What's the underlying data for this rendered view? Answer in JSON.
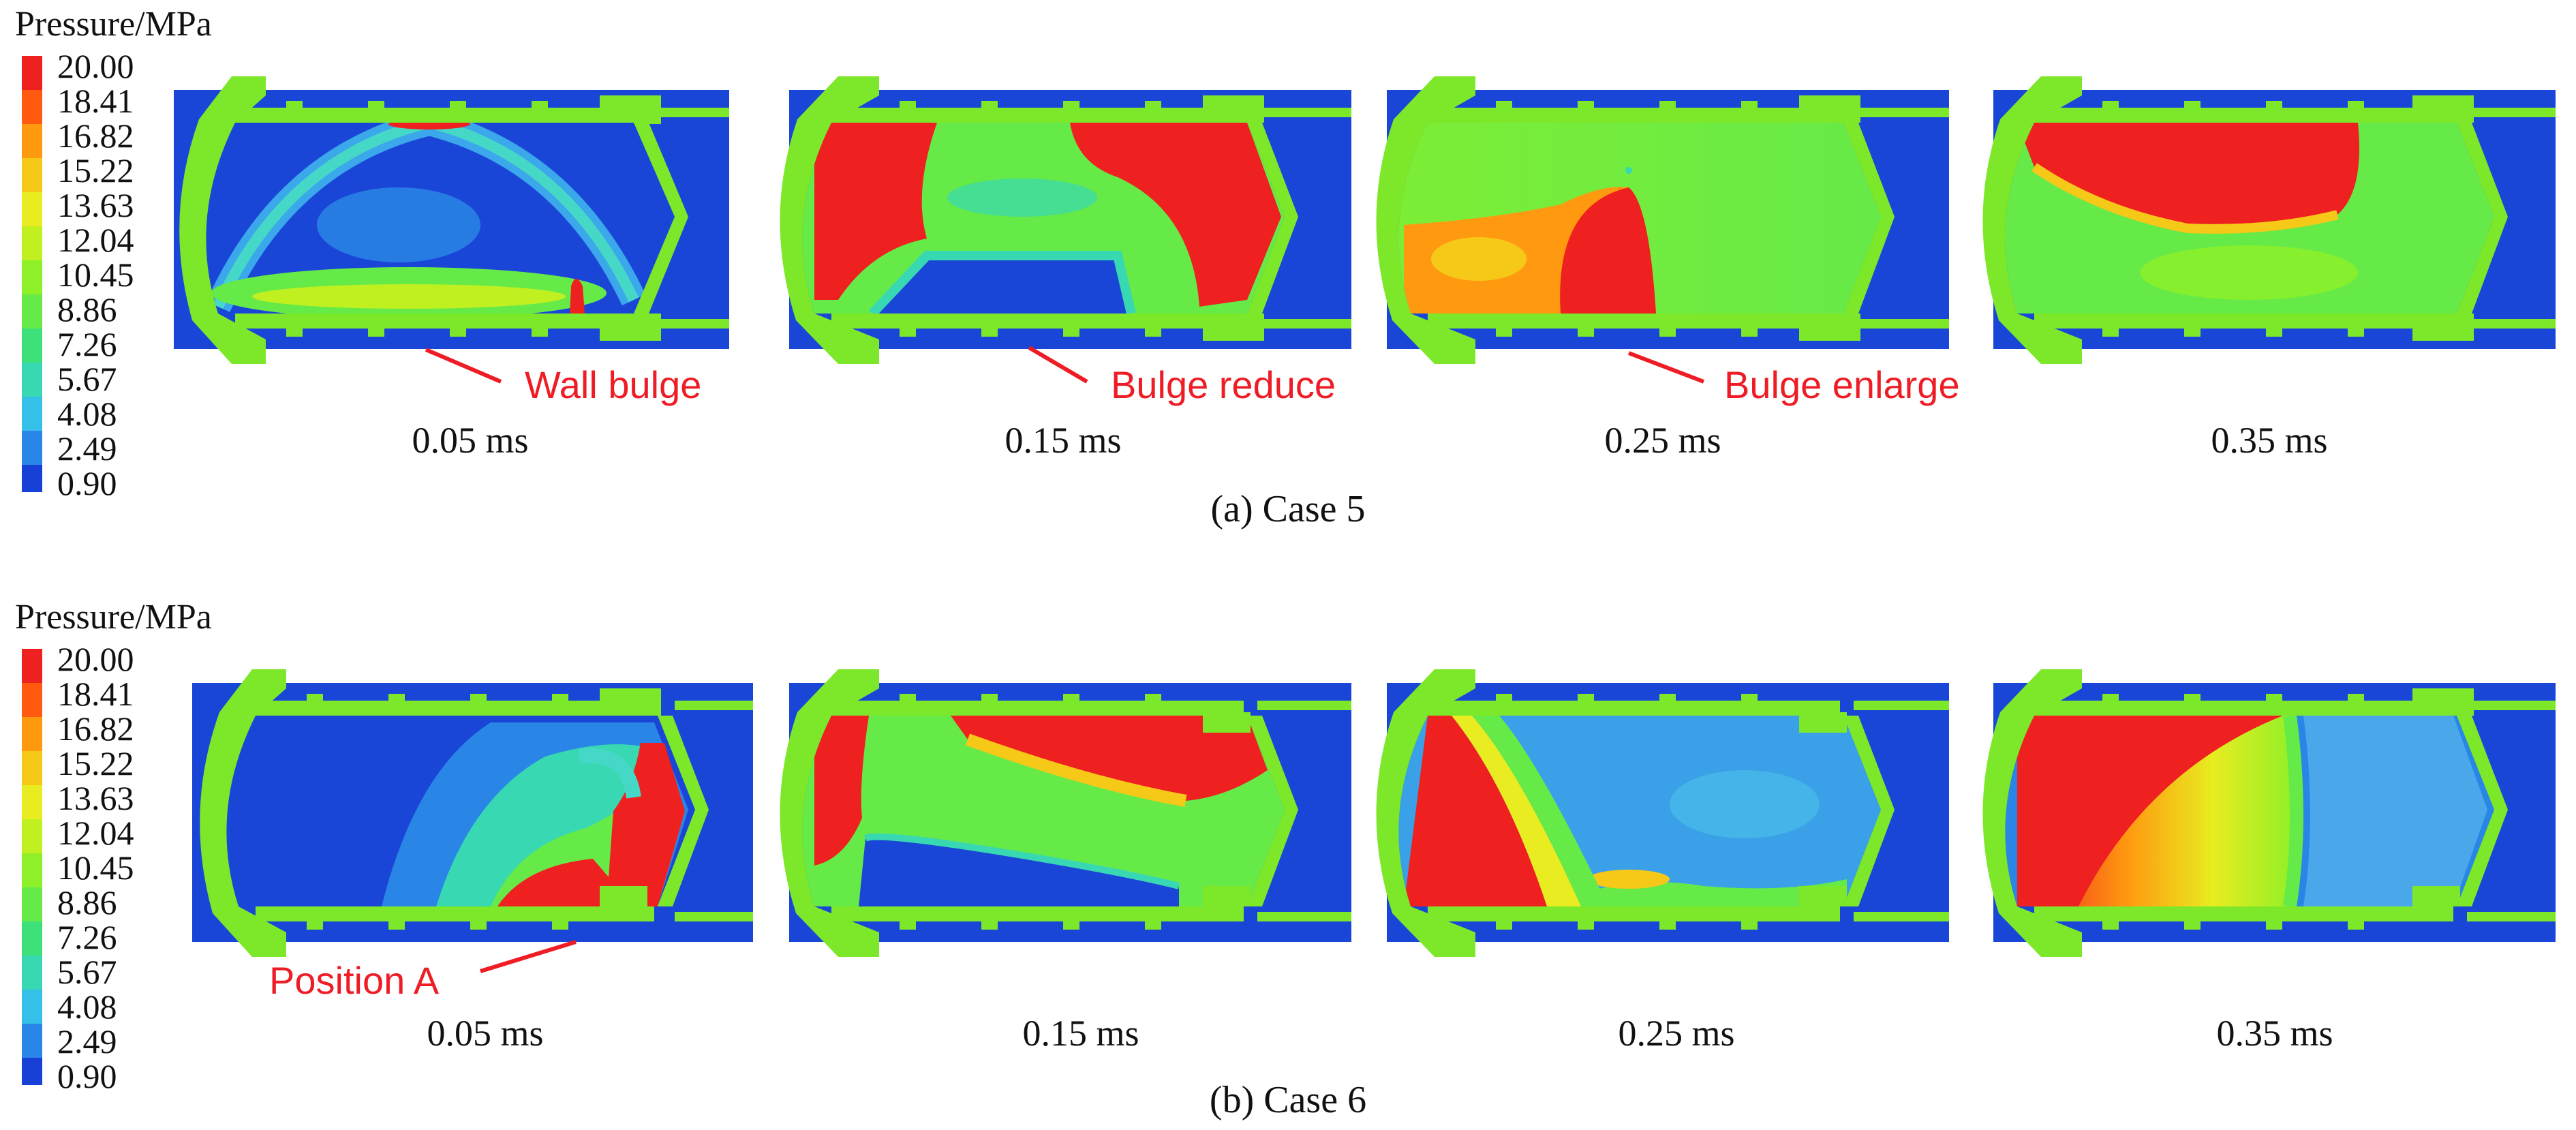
{
  "colorbar": {
    "title": "Pressure/MPa",
    "ticks": [
      "20.00",
      "18.41",
      "16.82",
      "15.22",
      "13.63",
      "12.04",
      "10.45",
      "8.86",
      "7.26",
      "5.67",
      "4.08",
      "2.49",
      "0.90"
    ],
    "colors": [
      "#ee2020",
      "#ff5a10",
      "#ff9a10",
      "#f6c818",
      "#e8ec20",
      "#c0f020",
      "#8ef028",
      "#66ea48",
      "#3ee07a",
      "#38d8b2",
      "#34c0e8",
      "#2a86e6",
      "#1640d6"
    ]
  },
  "colors": {
    "wall": "#7de82a",
    "background": "#1a46d8",
    "annotation": "#ee1c25",
    "text": "#111111"
  },
  "panels": [
    {
      "caption": "(a) Case 5",
      "frames": [
        {
          "time": "0.05 ms",
          "annotation": "Wall bulge"
        },
        {
          "time": "0.15 ms",
          "annotation": "Bulge reduce"
        },
        {
          "time": "0.25 ms",
          "annotation": "Bulge enlarge"
        },
        {
          "time": "0.35 ms",
          "annotation": ""
        }
      ]
    },
    {
      "caption": "(b) Case 6",
      "frames": [
        {
          "time": "0.05 ms",
          "annotation": "Position A"
        },
        {
          "time": "0.15 ms",
          "annotation": ""
        },
        {
          "time": "0.25 ms",
          "annotation": ""
        },
        {
          "time": "0.35 ms",
          "annotation": ""
        }
      ]
    }
  ]
}
